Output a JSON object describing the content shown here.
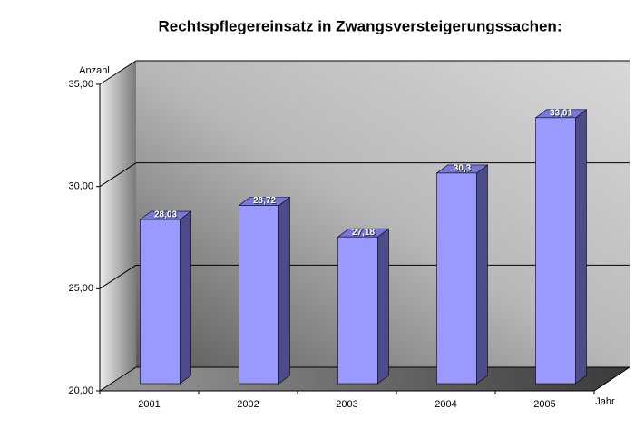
{
  "chart_data": {
    "type": "bar3d",
    "title": "Rechtspflegereinsatz in Zwangsversteigerungssachen:",
    "y_label": "Anzahl",
    "x_label": "Jahr",
    "categories": [
      "2001",
      "2002",
      "2003",
      "2004",
      "2005"
    ],
    "values": [
      28.03,
      28.72,
      27.18,
      30.3,
      33.01
    ],
    "value_labels": [
      "28,03",
      "28,72",
      "27,18",
      "30,3",
      "33,01"
    ],
    "color": "#9999ff",
    "ylim": [
      20,
      35
    ],
    "yticks": [
      {
        "value": 20,
        "label": "20,00"
      },
      {
        "value": 25,
        "label": "25,00"
      },
      {
        "value": 30,
        "label": "30,00"
      },
      {
        "value": 35,
        "label": "35,00"
      }
    ],
    "grid": true
  }
}
